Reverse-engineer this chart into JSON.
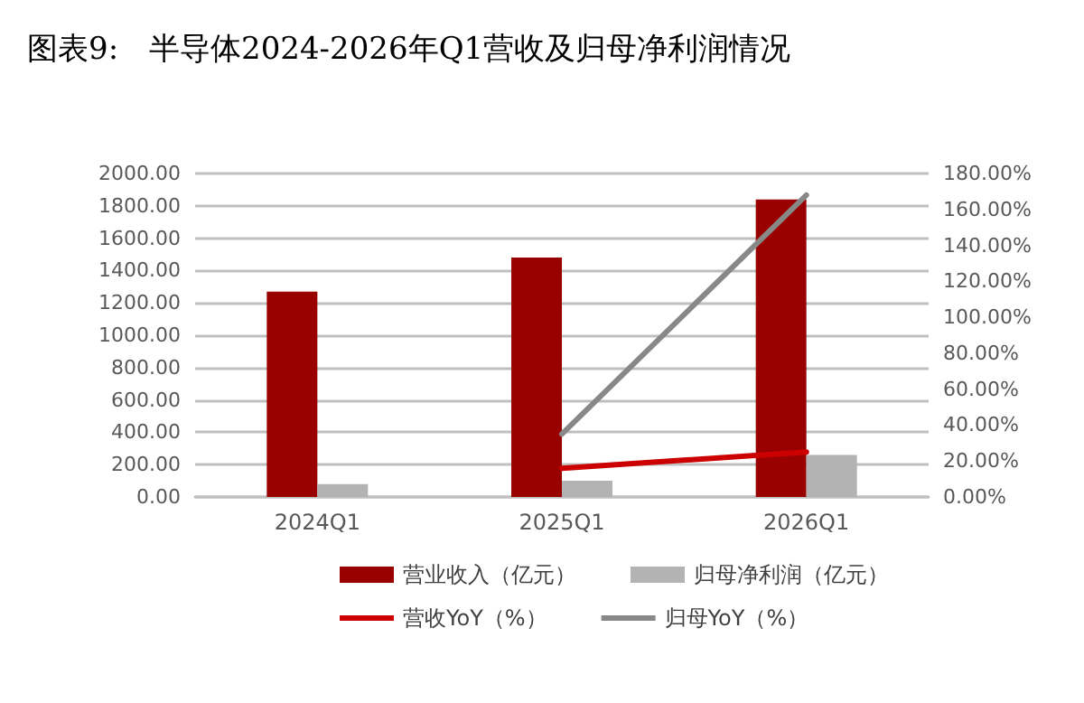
{
  "chart_data": {
    "type": "bar",
    "title": "图表9:　半导体2024-2026年Q1营收及归母净利润情况",
    "categories": [
      "2024Q1",
      "2025Q1",
      "2026Q1"
    ],
    "series": [
      {
        "name": "营业收入（亿元）",
        "color": "#990000",
        "values": [
          1270,
          1480,
          1840
        ]
      },
      {
        "name": "归母净利润（亿元）",
        "color": "#b3b3b3",
        "values": [
          80,
          100,
          260
        ]
      },
      {
        "name": "营收YoY（%）",
        "type": "line",
        "axis": "y2",
        "color": "#cc0000",
        "values": [
          null,
          16,
          25
        ]
      },
      {
        "name": "归母YoY（%）",
        "type": "line",
        "axis": "y2",
        "color": "#888888",
        "values": [
          null,
          35,
          168
        ]
      }
    ],
    "ylim": [
      0,
      2000
    ],
    "yticks": [
      {
        "value": 0,
        "label": "0.00"
      },
      {
        "value": 200,
        "label": "200.00"
      },
      {
        "value": 400,
        "label": "400.00"
      },
      {
        "value": 600,
        "label": "600.00"
      },
      {
        "value": 800,
        "label": "800.00"
      },
      {
        "value": 1000,
        "label": "1000.00"
      },
      {
        "value": 1200,
        "label": "1200.00"
      },
      {
        "value": 1400,
        "label": "1400.00"
      },
      {
        "value": 1600,
        "label": "1600.00"
      },
      {
        "value": 1800,
        "label": "1800.00"
      },
      {
        "value": 2000,
        "label": "2000.00"
      }
    ],
    "y2lim": [
      0,
      180
    ],
    "y2ticks": [
      {
        "value": 0,
        "label": "0.00%"
      },
      {
        "value": 20,
        "label": "20.00%"
      },
      {
        "value": 40,
        "label": "40.00%"
      },
      {
        "value": 60,
        "label": "60.00%"
      },
      {
        "value": 80,
        "label": "80.00%"
      },
      {
        "value": 100,
        "label": "100.00%"
      },
      {
        "value": 120,
        "label": "120.00%"
      },
      {
        "value": 140,
        "label": "140.00%"
      },
      {
        "value": 160,
        "label": "160.00%"
      },
      {
        "value": 180,
        "label": "180.00%"
      }
    ],
    "grid": "y",
    "legend": "bottom",
    "marker": "none",
    "line_style": "solid"
  }
}
